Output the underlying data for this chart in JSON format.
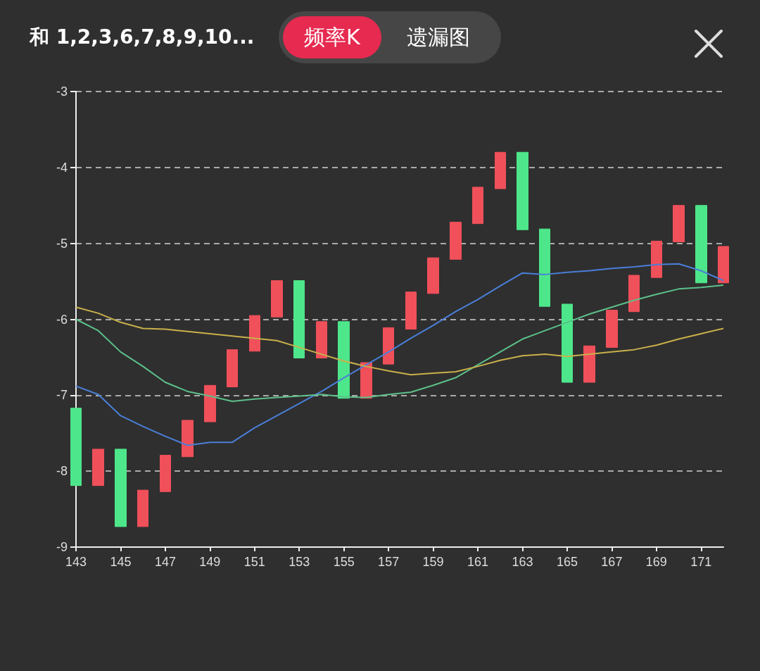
{
  "chart_data": {
    "type": "candlestick",
    "title": "和 1,2,3,6,7,8,9,10...",
    "annotations": [
      "频率K",
      "遗漏图"
    ],
    "categories": [
      "143",
      null,
      "145",
      null,
      "147",
      null,
      "149",
      null,
      "151",
      null,
      "153",
      null,
      "155",
      null,
      "157",
      null,
      "159",
      null,
      "161",
      null,
      "163",
      null,
      "165",
      null,
      "167",
      null,
      "169",
      null,
      "171",
      null
    ],
    "ylim": [
      -9,
      -3
    ],
    "yticks": [
      -9,
      -8,
      -7,
      -6,
      -5,
      -4,
      -3
    ],
    "grid": "y",
    "marker": "none",
    "series": [
      {
        "type": "candlestick",
        "ohlc": [
          [
            -7.17,
            -7.17,
            -8.19,
            -8.19
          ],
          [
            -8.19,
            -7.71,
            -8.19,
            -7.71
          ],
          [
            -7.71,
            -7.71,
            -8.73,
            -8.73
          ],
          [
            -8.73,
            -8.25,
            -8.73,
            -8.25
          ],
          [
            -8.27,
            -7.79,
            -8.27,
            -7.79
          ],
          [
            -7.81,
            -7.33,
            -7.81,
            -7.33
          ],
          [
            -7.35,
            -6.87,
            -7.35,
            -6.87
          ],
          [
            -6.89,
            -6.4,
            -6.89,
            -6.4
          ],
          [
            -6.42,
            -5.95,
            -6.42,
            -5.95
          ],
          [
            -5.97,
            -5.49,
            -5.97,
            -5.49
          ],
          [
            -5.49,
            -5.49,
            -6.51,
            -6.51
          ],
          [
            -6.51,
            -6.03,
            -6.51,
            -6.03
          ],
          [
            -6.03,
            -6.03,
            -7.04,
            -7.04
          ],
          [
            -7.04,
            -6.57,
            -7.04,
            -6.57
          ],
          [
            -6.59,
            -6.11,
            -6.59,
            -6.11
          ],
          [
            -6.13,
            -5.64,
            -6.13,
            -5.64
          ],
          [
            -5.66,
            -5.19,
            -5.66,
            -5.19
          ],
          [
            -5.21,
            -4.72,
            -5.21,
            -4.72
          ],
          [
            -4.74,
            -4.26,
            -4.74,
            -4.26
          ],
          [
            -4.28,
            -3.8,
            -4.28,
            -3.8
          ],
          [
            -3.8,
            -3.8,
            -4.82,
            -4.82
          ],
          [
            -4.81,
            -4.81,
            -5.83,
            -5.83
          ],
          [
            -5.8,
            -5.8,
            -6.83,
            -6.83
          ],
          [
            -6.83,
            -6.35,
            -6.83,
            -6.35
          ],
          [
            -6.37,
            -5.88,
            -6.37,
            -5.88
          ],
          [
            -5.9,
            -5.42,
            -5.9,
            -5.42
          ],
          [
            -5.45,
            -4.97,
            -5.45,
            -4.97
          ],
          [
            -4.98,
            -4.5,
            -4.98,
            -4.5
          ],
          [
            -4.5,
            -4.5,
            -5.52,
            -5.52
          ],
          [
            -5.52,
            -5.04,
            -5.52,
            -5.04
          ]
        ],
        "colors": [
          "#4ee68a",
          "#f0505a",
          "#4ee68a",
          "#f0505a",
          "#f0505a",
          "#f0505a",
          "#f0505a",
          "#f0505a",
          "#f0505a",
          "#f0505a",
          "#4ee68a",
          "#f0505a",
          "#4ee68a",
          "#f0505a",
          "#f0505a",
          "#f0505a",
          "#f0505a",
          "#f0505a",
          "#f0505a",
          "#f0505a",
          "#4ee68a",
          "#4ee68a",
          "#4ee68a",
          "#f0505a",
          "#f0505a",
          "#f0505a",
          "#f0505a",
          "#f0505a",
          "#4ee68a",
          "#f0505a"
        ]
      },
      {
        "type": "line",
        "color": "#4a7fd8",
        "values": [
          -6.88,
          -6.99,
          -7.27,
          -7.41,
          -7.54,
          -7.66,
          -7.62,
          -7.62,
          -7.43,
          -7.27,
          -7.11,
          -6.95,
          -6.77,
          -6.6,
          -6.43,
          -6.25,
          -6.08,
          -5.9,
          -5.74,
          -5.56,
          -5.39,
          -5.41,
          -5.38,
          -5.36,
          -5.33,
          -5.31,
          -5.28,
          -5.27,
          -5.36,
          -5.49
        ]
      },
      {
        "type": "line",
        "color": "#5cc08a",
        "values": [
          -6.0,
          -6.15,
          -6.43,
          -6.62,
          -6.83,
          -6.95,
          -7.01,
          -7.08,
          -7.05,
          -7.03,
          -7.01,
          -6.99,
          -7.02,
          -7.03,
          -6.99,
          -6.96,
          -6.87,
          -6.77,
          -6.6,
          -6.43,
          -6.26,
          -6.15,
          -6.04,
          -5.93,
          -5.84,
          -5.75,
          -5.67,
          -5.6,
          -5.58,
          -5.55
        ]
      },
      {
        "type": "line",
        "color": "#c9b04a",
        "values": [
          -5.84,
          -5.92,
          -6.04,
          -6.12,
          -6.13,
          -6.16,
          -6.19,
          -6.22,
          -6.25,
          -6.28,
          -6.37,
          -6.46,
          -6.55,
          -6.62,
          -6.68,
          -6.73,
          -6.71,
          -6.69,
          -6.62,
          -6.54,
          -6.48,
          -6.46,
          -6.49,
          -6.46,
          -6.43,
          -6.4,
          -6.34,
          -6.26,
          -6.19,
          -6.12
        ]
      }
    ]
  }
}
